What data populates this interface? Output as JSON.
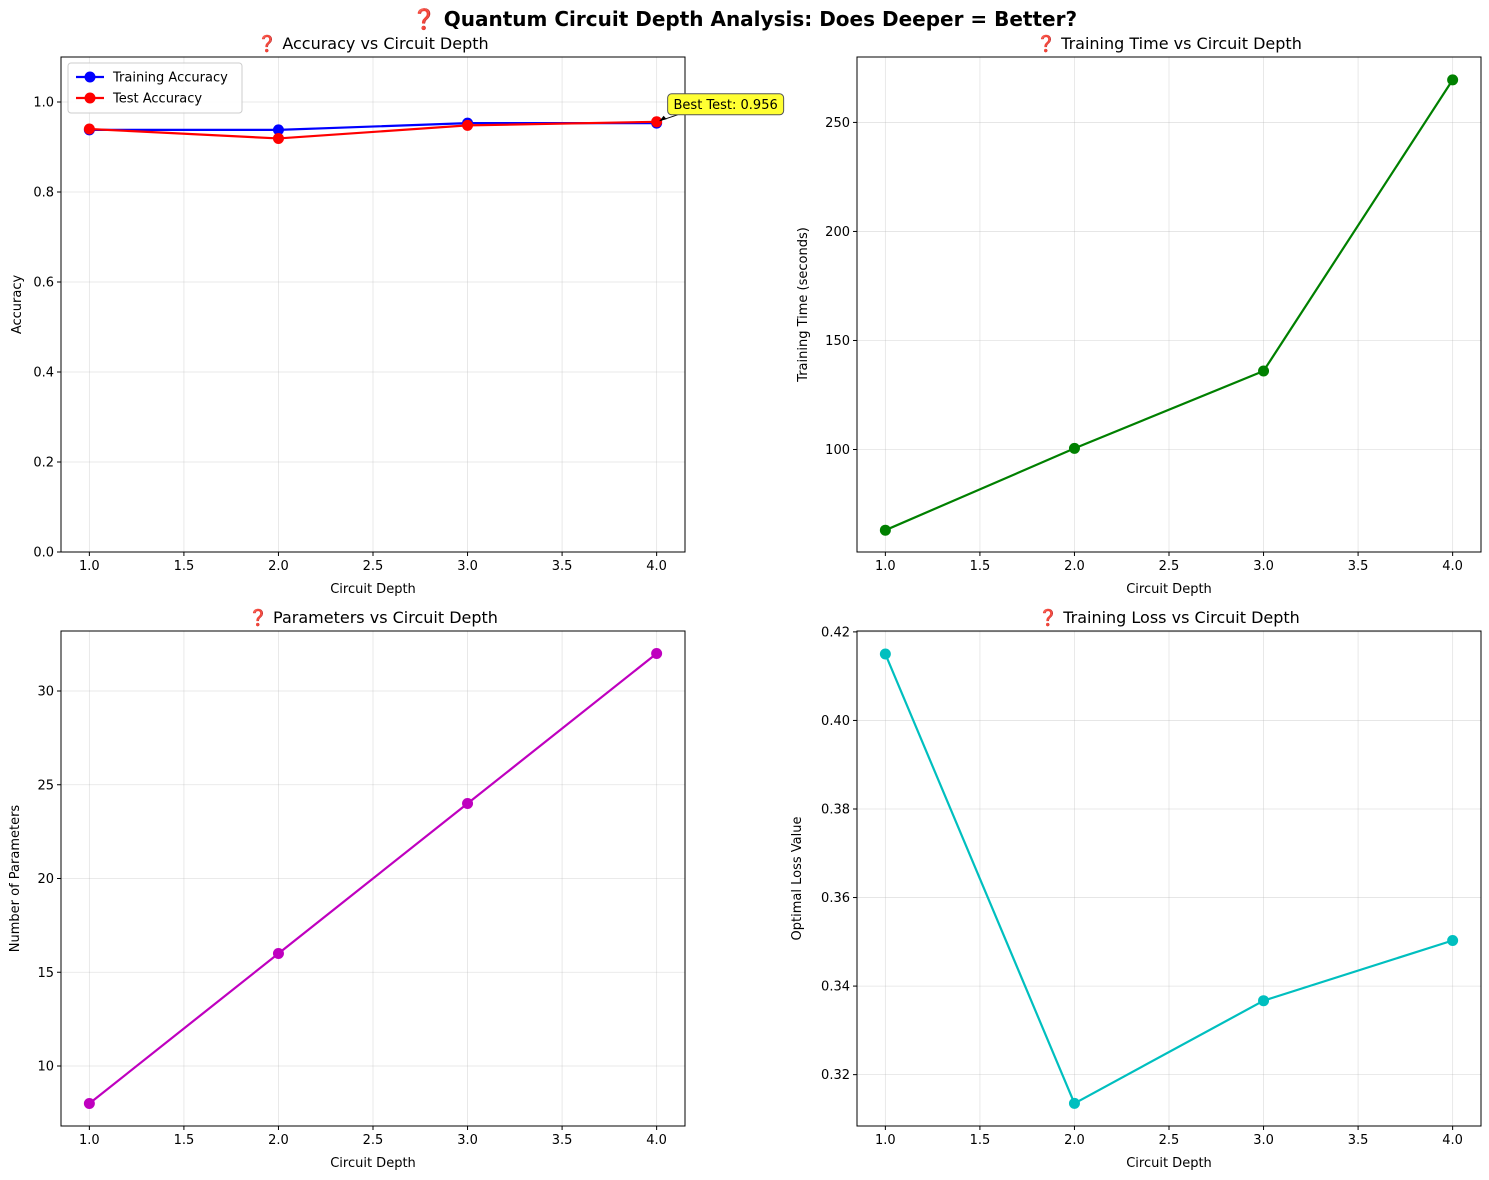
{
  "figure": {
    "title": "❓ Quantum Circuit Depth Analysis: Does Deeper = Better?"
  },
  "chart_data": [
    {
      "id": "accuracy",
      "type": "line",
      "title": "❓ Accuracy vs Circuit Depth",
      "xlabel": "Circuit Depth",
      "ylabel": "Accuracy",
      "xlim": [
        0.85,
        4.15
      ],
      "ylim": [
        0.0,
        1.1
      ],
      "xticks": [
        1.0,
        1.5,
        2.0,
        2.5,
        3.0,
        3.5,
        4.0
      ],
      "yticks": [
        0.0,
        0.2,
        0.4,
        0.6,
        0.8,
        1.0
      ],
      "tick_decimals": {
        "x": 1,
        "y": 1
      },
      "grid": true,
      "legend": "upper-left",
      "x": [
        1,
        2,
        3,
        4
      ],
      "series": [
        {
          "name": "Training Accuracy",
          "values": [
            0.938,
            0.938,
            0.953,
            0.953
          ],
          "color": "#0000ff"
        },
        {
          "name": "Test Accuracy",
          "values": [
            0.94,
            0.919,
            0.948,
            0.956
          ],
          "color": "#ff0000"
        }
      ],
      "annotation": {
        "text": "Best Test: 0.956",
        "x": 4,
        "y": 0.956,
        "bg": "#ffff33"
      }
    },
    {
      "id": "time",
      "type": "line",
      "title": "❓ Training Time vs Circuit Depth",
      "xlabel": "Circuit Depth",
      "ylabel": "Training Time (seconds)",
      "xlim": [
        0.85,
        4.15
      ],
      "ylim": [
        53,
        280
      ],
      "xticks": [
        1.0,
        1.5,
        2.0,
        2.5,
        3.0,
        3.5,
        4.0
      ],
      "yticks": [
        100,
        150,
        200,
        250
      ],
      "tick_decimals": {
        "x": 1,
        "y": 0
      },
      "grid": true,
      "x": [
        1,
        2,
        3,
        4
      ],
      "series": [
        {
          "name": "",
          "values": [
            63,
            100.5,
            136,
            269.5
          ],
          "color": "#008000"
        }
      ]
    },
    {
      "id": "params",
      "type": "line",
      "title": "❓ Parameters vs Circuit Depth",
      "xlabel": "Circuit Depth",
      "ylabel": "Number of Parameters",
      "xlim": [
        0.85,
        4.15
      ],
      "ylim": [
        6.8,
        33.2
      ],
      "xticks": [
        1.0,
        1.5,
        2.0,
        2.5,
        3.0,
        3.5,
        4.0
      ],
      "yticks": [
        10,
        15,
        20,
        25,
        30
      ],
      "tick_decimals": {
        "x": 1,
        "y": 0
      },
      "grid": true,
      "x": [
        1,
        2,
        3,
        4
      ],
      "series": [
        {
          "name": "",
          "values": [
            8,
            16,
            24,
            32
          ],
          "color": "#bf00bf"
        }
      ]
    },
    {
      "id": "loss",
      "type": "line",
      "title": "❓ Training Loss vs Circuit Depth",
      "xlabel": "Circuit Depth",
      "ylabel": "Optimal Loss Value",
      "xlim": [
        0.85,
        4.15
      ],
      "ylim": [
        0.3084,
        0.4202
      ],
      "xticks": [
        1.0,
        1.5,
        2.0,
        2.5,
        3.0,
        3.5,
        4.0
      ],
      "yticks": [
        0.32,
        0.34,
        0.36,
        0.38,
        0.4,
        0.42
      ],
      "tick_decimals": {
        "x": 1,
        "y": 2
      },
      "grid": true,
      "x": [
        1,
        2,
        3,
        4
      ],
      "series": [
        {
          "name": "",
          "values": [
            0.415,
            0.3135,
            0.3367,
            0.3503
          ],
          "color": "#00bfbf"
        }
      ]
    }
  ]
}
